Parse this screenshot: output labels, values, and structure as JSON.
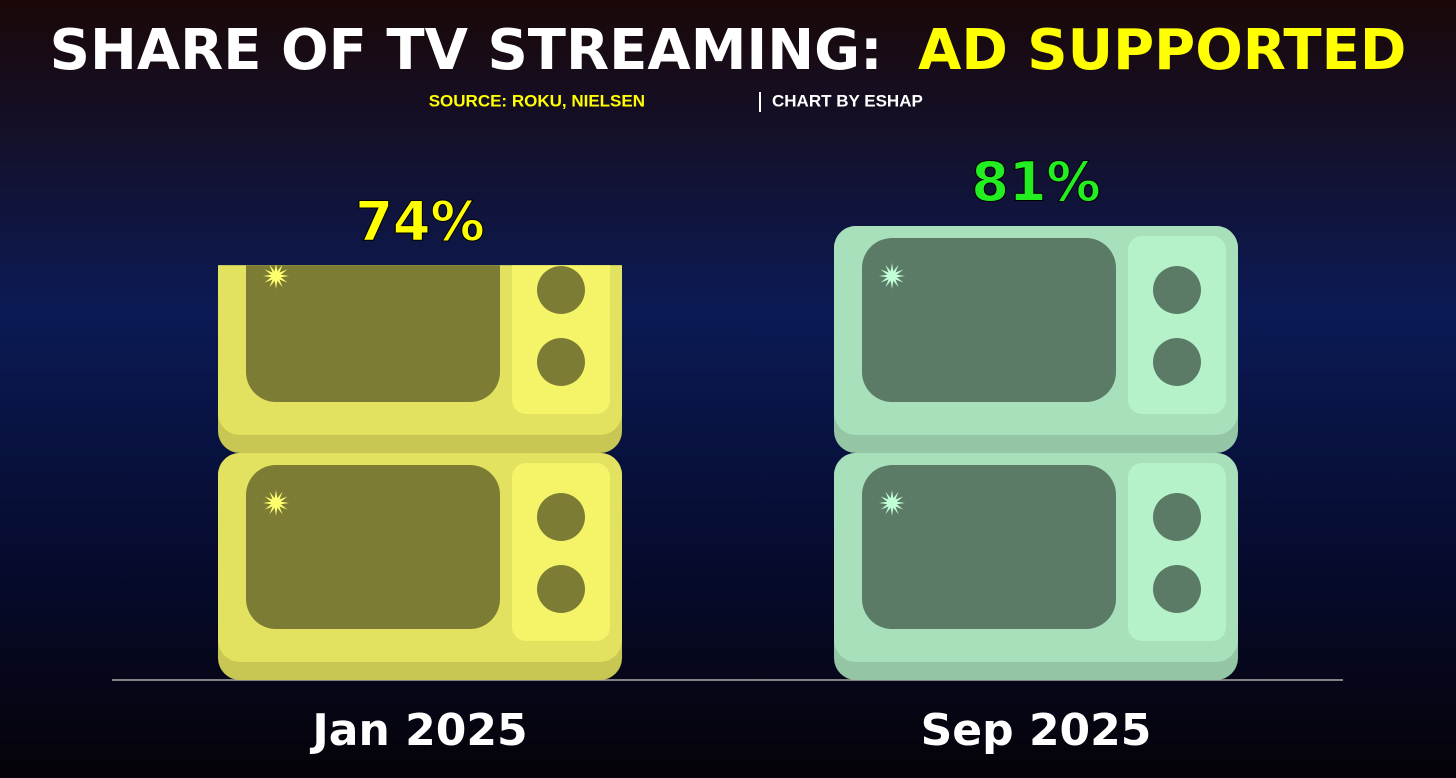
{
  "chart_data": {
    "type": "bar",
    "title": "SHARE OF TV STREAMING:",
    "title_highlight": "AD SUPPORTED",
    "source": "SOURCE: ROKU, NIELSEN",
    "credit": "CHART BY ESHAP",
    "categories": [
      "Jan 2025",
      "Sep 2025"
    ],
    "values": [
      74,
      81
    ],
    "value_labels": [
      "74%",
      "81%"
    ],
    "colors": [
      "#e3e260",
      "#a8e0bb"
    ],
    "label_colors": [
      "#ffff00",
      "#22ee22"
    ]
  }
}
